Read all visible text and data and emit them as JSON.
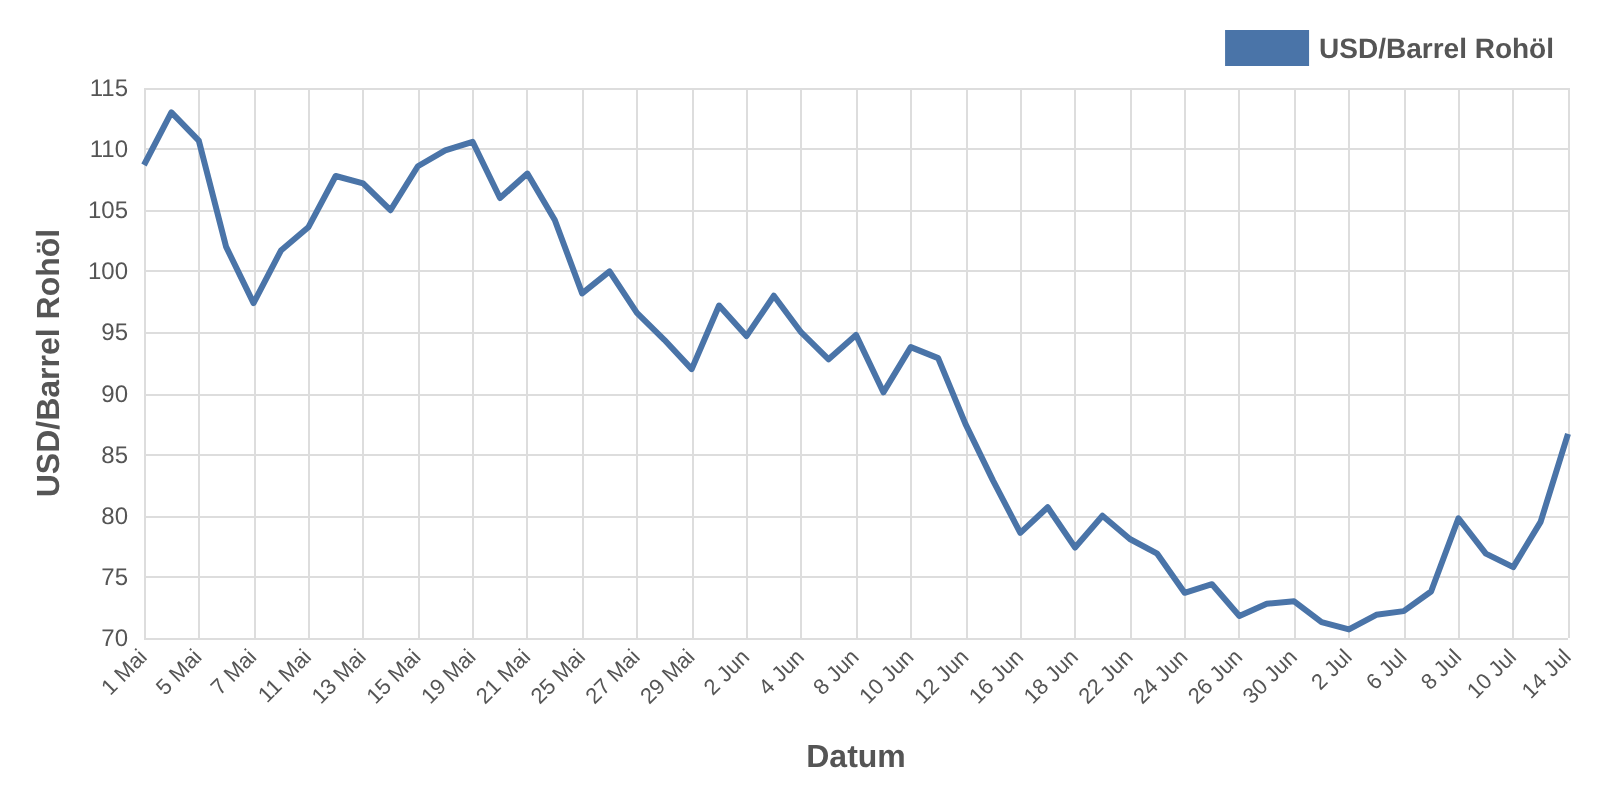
{
  "chart_data": {
    "type": "line",
    "xlabel": "Datum",
    "ylabel": "USD/Barrel Rohöl",
    "categories": [
      "1 Mai",
      null,
      "5 Mai",
      null,
      "7 Mai",
      null,
      "11 Mai",
      null,
      "13 Mai",
      null,
      "15 Mai",
      null,
      "19 Mai",
      null,
      "21 Mai",
      null,
      "25 Mai",
      null,
      "27 Mai",
      null,
      "29 Mai",
      null,
      "2 Jun",
      null,
      "4 Jun",
      null,
      "8 Jun",
      null,
      "10 Jun",
      null,
      "12 Jun",
      null,
      "16 Jun",
      null,
      "18 Jun",
      null,
      "22 Jun",
      null,
      "24 Jun",
      null,
      "26 Jun",
      null,
      "30 Jun",
      null,
      "2 Jul",
      null,
      "6 Jul",
      null,
      "8 Jul",
      null,
      "10 Jul",
      null,
      "14 Jul"
    ],
    "series": [
      {
        "name": "USD/Barrel Rohöl",
        "color": "#4a74a8",
        "values": [
          108.7,
          113,
          110.7,
          102,
          97.4,
          101.7,
          103.6,
          107.8,
          107.2,
          105,
          108.6,
          109.9,
          110.6,
          106,
          108,
          104.2,
          98.2,
          100,
          96.6,
          94.4,
          92,
          97.2,
          94.7,
          98,
          95,
          92.8,
          94.8,
          90.1,
          93.8,
          92.9,
          87.5,
          82.9,
          78.6,
          80.7,
          77.4,
          80,
          78.1,
          76.9,
          73.7,
          74.4,
          71.8,
          72.8,
          73,
          71.3,
          70.7,
          71.9,
          72.2,
          73.8,
          79.8,
          76.9,
          75.8,
          79.5,
          86.7
        ]
      }
    ],
    "ylim": [
      70,
      115
    ],
    "yticks": [
      70,
      75,
      80,
      85,
      90,
      95,
      100,
      105,
      110,
      115
    ],
    "grid": true,
    "legend": "top right",
    "marker": "none",
    "line_style": "solid"
  }
}
